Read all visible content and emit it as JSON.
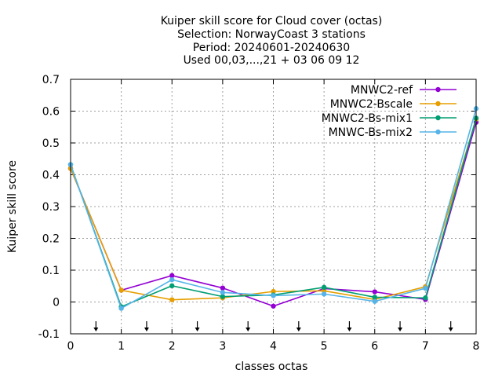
{
  "chart_data": {
    "type": "line",
    "title_lines": [
      "Kuiper skill score  for Cloud cover (octas)",
      "Selection: NorwayCoast      3 stations",
      "Period: 20240601-20240630",
      "Used 00,03,...,21 + 03 06 09 12"
    ],
    "xlabel": "classes octas",
    "ylabel": "Kuiper skill score",
    "xlim": [
      0,
      8
    ],
    "ylim": [
      -0.1,
      0.7
    ],
    "x_ticks": [
      0,
      1,
      2,
      3,
      4,
      5,
      6,
      7,
      8
    ],
    "x_tick_labels": [
      "0",
      "1",
      "2",
      "3",
      "4",
      "5",
      "6",
      "7",
      "8"
    ],
    "y_ticks": [
      -0.1,
      0,
      0.1,
      0.2,
      0.3,
      0.4,
      0.5,
      0.6,
      0.7
    ],
    "y_tick_labels": [
      "-0.1",
      "0",
      "0.1",
      "0.2",
      "0.3",
      "0.4",
      "0.5",
      "0.6",
      "0.7"
    ],
    "grid": true,
    "legend_position": "top-right",
    "arrow_markers_x": [
      0.5,
      1.5,
      2.5,
      3.5,
      4.5,
      5.5,
      6.5,
      7.5
    ],
    "x": [
      0,
      1,
      2,
      3,
      4,
      5,
      6,
      7,
      8
    ],
    "series": [
      {
        "name": "MNWC2-ref",
        "color": "#9400d3",
        "values": [
          0.42,
          0.037,
          0.083,
          0.044,
          -0.013,
          0.042,
          0.032,
          0.008,
          0.565
        ]
      },
      {
        "name": "MNWC2-Bscale",
        "color": "#e69f00",
        "values": [
          0.42,
          0.037,
          0.007,
          0.013,
          0.033,
          0.035,
          0.008,
          0.048,
          0.575
        ]
      },
      {
        "name": "MNWC2-Bs-mix1",
        "color": "#009e73",
        "values": [
          0.432,
          -0.015,
          0.051,
          0.017,
          0.022,
          0.046,
          0.015,
          0.013,
          0.578
        ]
      },
      {
        "name": "MNWC-Bs-mix2",
        "color": "#56b4e9",
        "values": [
          0.432,
          -0.02,
          0.07,
          0.03,
          0.02,
          0.025,
          0.002,
          0.043,
          0.608
        ]
      }
    ]
  }
}
